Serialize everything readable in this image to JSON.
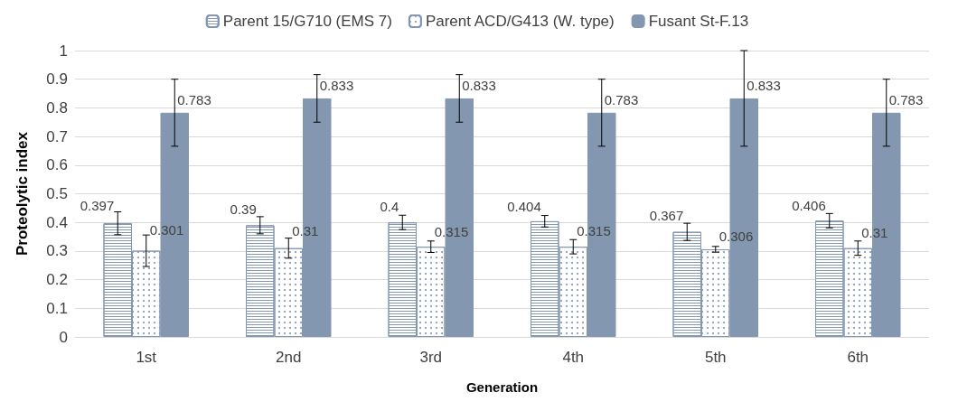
{
  "chart_data": {
    "type": "bar",
    "xlabel": "Generation",
    "ylabel": "Proteolytic index",
    "categories": [
      "1st",
      "2nd",
      "3rd",
      "4th",
      "5th",
      "6th"
    ],
    "series": [
      {
        "name": "Parent 15/G710 (EMS 7)",
        "color": "#8497b0",
        "values": [
          0.397,
          0.39,
          0.4,
          0.404,
          0.367,
          0.406
        ],
        "errors": [
          0.04,
          0.03,
          0.025,
          0.02,
          0.03,
          0.025
        ]
      },
      {
        "name": "Parent ACD/G413 (W. type)",
        "color": "#8497b0",
        "values": [
          0.301,
          0.31,
          0.315,
          0.315,
          0.306,
          0.31
        ],
        "errors": [
          0.055,
          0.035,
          0.02,
          0.025,
          0.01,
          0.025
        ]
      },
      {
        "name": "Fusant St-F.13",
        "color": "#8497b0",
        "values": [
          0.783,
          0.833,
          0.833,
          0.783,
          0.833,
          0.783
        ],
        "errors": [
          0.117,
          0.083,
          0.083,
          0.117,
          0.167,
          0.117
        ]
      }
    ],
    "ylim": [
      0,
      1
    ],
    "yticks": [
      0,
      0.1,
      0.2,
      0.3,
      0.4,
      0.5,
      0.6,
      0.7,
      0.8,
      0.9,
      1
    ],
    "grid": "y",
    "legend": "top",
    "data_labels": true
  }
}
